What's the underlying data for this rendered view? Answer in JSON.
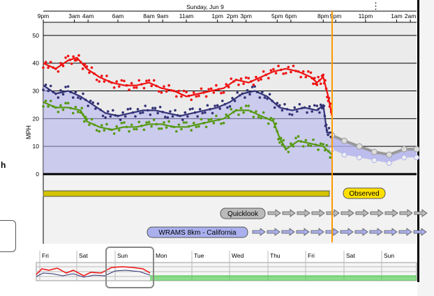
{
  "page": {
    "date_title": "Sunday, Jun 9",
    "left_label": "h",
    "menu_icon": "kebab-menu-icon"
  },
  "colors": {
    "gust": "#ee1111",
    "avg": "#333377",
    "lull": "#559911",
    "forecast": "#b0b0ee",
    "now_line": "#ff9900",
    "observed_fill": "#ffe000",
    "quicklook_fill": "#bbbbbb",
    "wrams_fill": "#aab0ee"
  },
  "chart_data": {
    "type": "line",
    "title": "Sunday, Jun 9",
    "ylabel": "MPH",
    "ylim": [
      0,
      55
    ],
    "yticks": [
      0,
      10,
      20,
      30,
      40,
      50
    ],
    "x_range_hours": [
      0,
      30
    ],
    "x_ticks": [
      {
        "h": 0,
        "label": "9pm"
      },
      {
        "h": 2.5,
        "label": "3am"
      },
      {
        "h": 3.6,
        "label": "4am"
      },
      {
        "h": 6,
        "label": "6am"
      },
      {
        "h": 8.5,
        "label": "8am"
      },
      {
        "h": 9.6,
        "label": "9am"
      },
      {
        "h": 11.5,
        "label": "11am"
      },
      {
        "h": 14,
        "label": "1pm"
      },
      {
        "h": 15.2,
        "label": "2pm"
      },
      {
        "h": 16.3,
        "label": "3pm"
      },
      {
        "h": 18.8,
        "label": "5pm"
      },
      {
        "h": 19.9,
        "label": "6pm"
      },
      {
        "h": 22.5,
        "label": "8pm"
      },
      {
        "h": 23.5,
        "label": "9pm"
      },
      {
        "h": 25.9,
        "label": "11pm"
      },
      {
        "h": 28.4,
        "label": "1am"
      },
      {
        "h": 29.5,
        "label": "2am"
      }
    ],
    "now_hour": 23.2,
    "series": [
      {
        "name": "gust",
        "x": [
          0,
          1,
          2,
          2.7,
          3.5,
          4.5,
          5.5,
          6.5,
          7.5,
          8.5,
          9.5,
          10.5,
          11.5,
          12.5,
          13.5,
          14.5,
          15.5,
          16.5,
          17.5,
          18.5,
          19.5,
          20.5,
          21.5,
          22,
          22.5,
          22.9,
          23.2
        ],
        "y": [
          40,
          38,
          41,
          42,
          38,
          35,
          33,
          32,
          32,
          33,
          31,
          30,
          28,
          29,
          30,
          31,
          34,
          33,
          35,
          37,
          38,
          37,
          35,
          33,
          35,
          28,
          21
        ]
      },
      {
        "name": "avg",
        "x": [
          0,
          1,
          2,
          3,
          4,
          5,
          6,
          7,
          8,
          9,
          10,
          11,
          12,
          13,
          14,
          15,
          16,
          17,
          18,
          19,
          20,
          21,
          22,
          22.5,
          22.8,
          23.2
        ],
        "y": [
          32,
          29,
          30,
          28,
          25,
          22,
          21,
          22,
          23,
          23,
          22,
          21,
          22,
          23,
          24,
          26,
          29,
          30,
          28,
          24,
          23,
          24,
          23,
          25,
          15,
          15
        ]
      },
      {
        "name": "lull",
        "x": [
          0,
          1,
          2,
          3,
          3.5,
          4.5,
          5.5,
          6.5,
          7.5,
          8.5,
          9.5,
          10.5,
          11.5,
          12.5,
          13.5,
          14.5,
          15.5,
          16.5,
          17.5,
          18.5,
          19,
          19.5,
          20.5,
          21.5,
          22.5,
          23.2
        ],
        "y": [
          26,
          24,
          24,
          23,
          19,
          17,
          16,
          17,
          17,
          18,
          18,
          17,
          17,
          18,
          19,
          20,
          23,
          23,
          21,
          19,
          13,
          9,
          12,
          11,
          10,
          7
        ]
      },
      {
        "name": "forecast-avg",
        "x": [
          23.2,
          24.2,
          25.4,
          26.6,
          27.8,
          29,
          30
        ],
        "y": [
          14,
          12,
          10,
          8,
          7,
          9,
          9
        ]
      },
      {
        "name": "forecast-lull",
        "x": [
          23.2,
          24.2,
          25.4,
          26.6,
          27.8,
          29,
          30
        ],
        "y": [
          9,
          7,
          6,
          5,
          4,
          6,
          6
        ]
      }
    ],
    "bands": [
      {
        "label": "Observed"
      },
      {
        "label": "Quicklook"
      },
      {
        "label": "WRAMS 8km - California"
      }
    ],
    "overview": {
      "day_labels": [
        "Fri",
        "Sat",
        "Sun",
        "Mon",
        "Tue",
        "Wed",
        "Thu",
        "Fri",
        "Sat",
        "Sun"
      ]
    }
  }
}
